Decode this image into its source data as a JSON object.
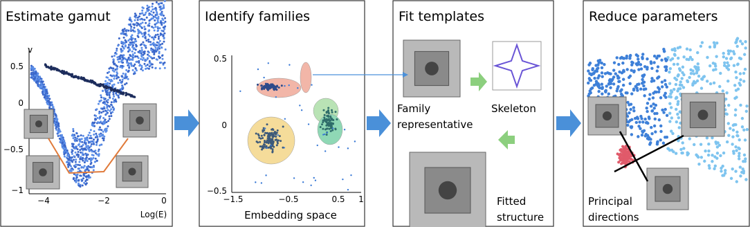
{
  "panels": [
    {
      "title": "Estimate gamut",
      "y_axis_label": "v",
      "x_axis_label": "Log(E)",
      "yticks": [
        "0.5",
        "0",
        "−0.5",
        "−1"
      ],
      "xticks": [
        "−4",
        "−2",
        "0"
      ]
    },
    {
      "title": "Identify families",
      "yticks": [
        "0.5",
        "0",
        "−0.5"
      ],
      "xticks": [
        "−1.5",
        "−0.5",
        "0.5",
        "1"
      ],
      "x_axis_label": "Embedding space"
    },
    {
      "title": "Fit templates",
      "labels": [
        {
          "lines": [
            "Family",
            "representative"
          ]
        },
        {
          "lines": [
            "Skeleton"
          ]
        },
        {
          "lines": [
            "Fitted",
            "structure"
          ]
        }
      ]
    },
    {
      "title": "Reduce parameters",
      "labels": [
        {
          "lines": [
            "Principal",
            "directions"
          ]
        }
      ]
    }
  ]
}
